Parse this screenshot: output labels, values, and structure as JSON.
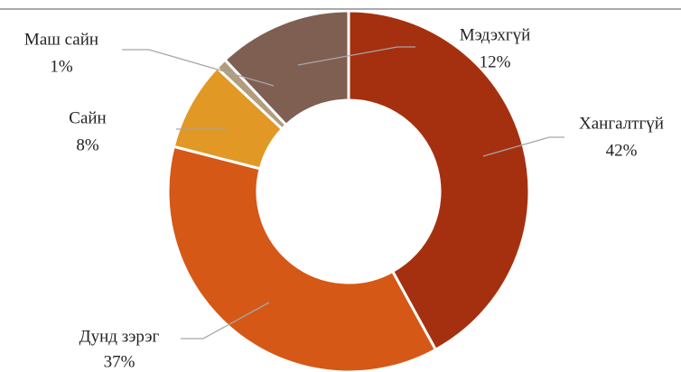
{
  "chart_data": {
    "type": "donut",
    "categories": [
      "Хангалтгүй",
      "Дунд зэрэг",
      "Сайн",
      "Маш сайн",
      "Мэдэхгүй"
    ],
    "values": [
      42,
      37,
      8,
      1,
      12
    ],
    "value_labels": [
      "42%",
      "37%",
      "8%",
      "1%",
      "12%"
    ],
    "colors": [
      "#a5300f",
      "#d55816",
      "#e19825",
      "#b19c7d",
      "#7f5f52"
    ]
  }
}
